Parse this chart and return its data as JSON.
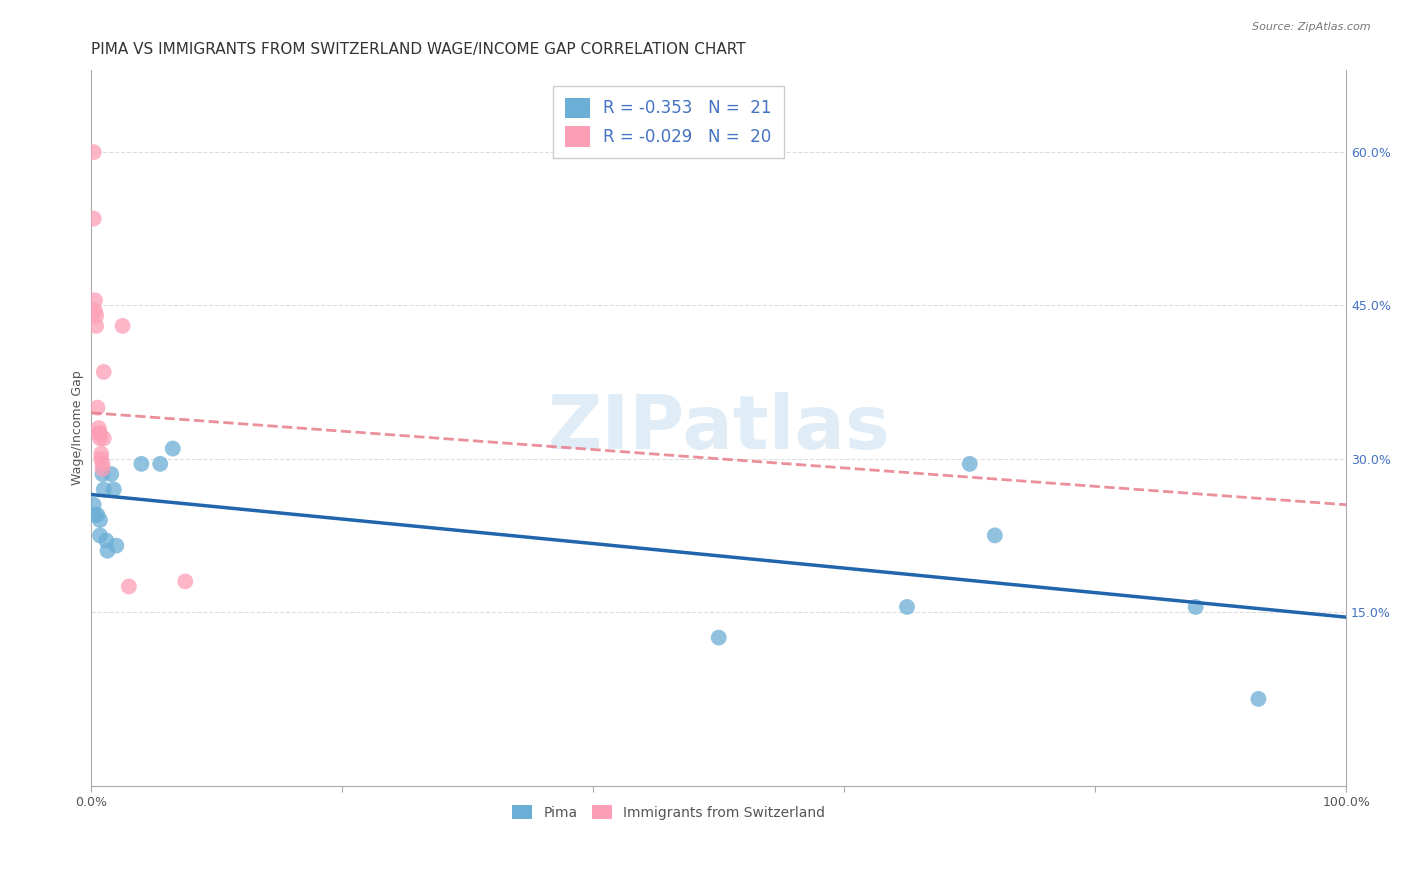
{
  "title": "PIMA VS IMMIGRANTS FROM SWITZERLAND WAGE/INCOME GAP CORRELATION CHART",
  "source": "Source: ZipAtlas.com",
  "xlabel": "",
  "ylabel": "Wage/Income Gap",
  "xlim": [
    0.0,
    1.0
  ],
  "ylim": [
    -0.02,
    0.68
  ],
  "right_yticks": [
    0.15,
    0.3,
    0.45,
    0.6
  ],
  "right_yticklabels": [
    "15.0%",
    "30.0%",
    "45.0%",
    "60.0%"
  ],
  "blue_R": -0.353,
  "blue_N": 21,
  "pink_R": -0.029,
  "pink_N": 20,
  "blue_color": "#6baed6",
  "pink_color": "#fc9eb5",
  "blue_line_color": "#2166ac",
  "pink_line_color": "#e87c8a",
  "legend_blue_label": "R = -0.353   N =  21",
  "legend_pink_label": "R = -0.029   N =  20",
  "pima_label": "Pima",
  "swiss_label": "Immigrants from Switzerland",
  "blue_x": [
    0.002,
    0.003,
    0.005,
    0.007,
    0.007,
    0.009,
    0.01,
    0.012,
    0.013,
    0.016,
    0.018,
    0.02,
    0.04,
    0.055,
    0.065,
    0.5,
    0.65,
    0.7,
    0.72,
    0.88,
    0.93
  ],
  "blue_y": [
    0.255,
    0.245,
    0.245,
    0.24,
    0.225,
    0.285,
    0.27,
    0.22,
    0.21,
    0.285,
    0.27,
    0.215,
    0.295,
    0.295,
    0.31,
    0.125,
    0.155,
    0.295,
    0.225,
    0.155,
    0.065
  ],
  "pink_x": [
    0.002,
    0.002,
    0.003,
    0.003,
    0.004,
    0.004,
    0.005,
    0.006,
    0.006,
    0.007,
    0.007,
    0.008,
    0.008,
    0.009,
    0.009,
    0.01,
    0.01,
    0.025,
    0.03,
    0.075
  ],
  "pink_y": [
    0.6,
    0.535,
    0.455,
    0.445,
    0.44,
    0.43,
    0.35,
    0.33,
    0.325,
    0.325,
    0.32,
    0.305,
    0.3,
    0.295,
    0.29,
    0.385,
    0.32,
    0.43,
    0.175,
    0.18
  ],
  "blue_trend_x": [
    0.0,
    1.0
  ],
  "blue_trend_y": [
    0.265,
    0.145
  ],
  "pink_trend_x": [
    0.0,
    1.0
  ],
  "pink_trend_y": [
    0.345,
    0.255
  ],
  "background_color": "#ffffff",
  "grid_color": "#dddddd",
  "watermark": "ZIPatlas",
  "title_fontsize": 11,
  "axis_label_fontsize": 9,
  "tick_fontsize": 9
}
